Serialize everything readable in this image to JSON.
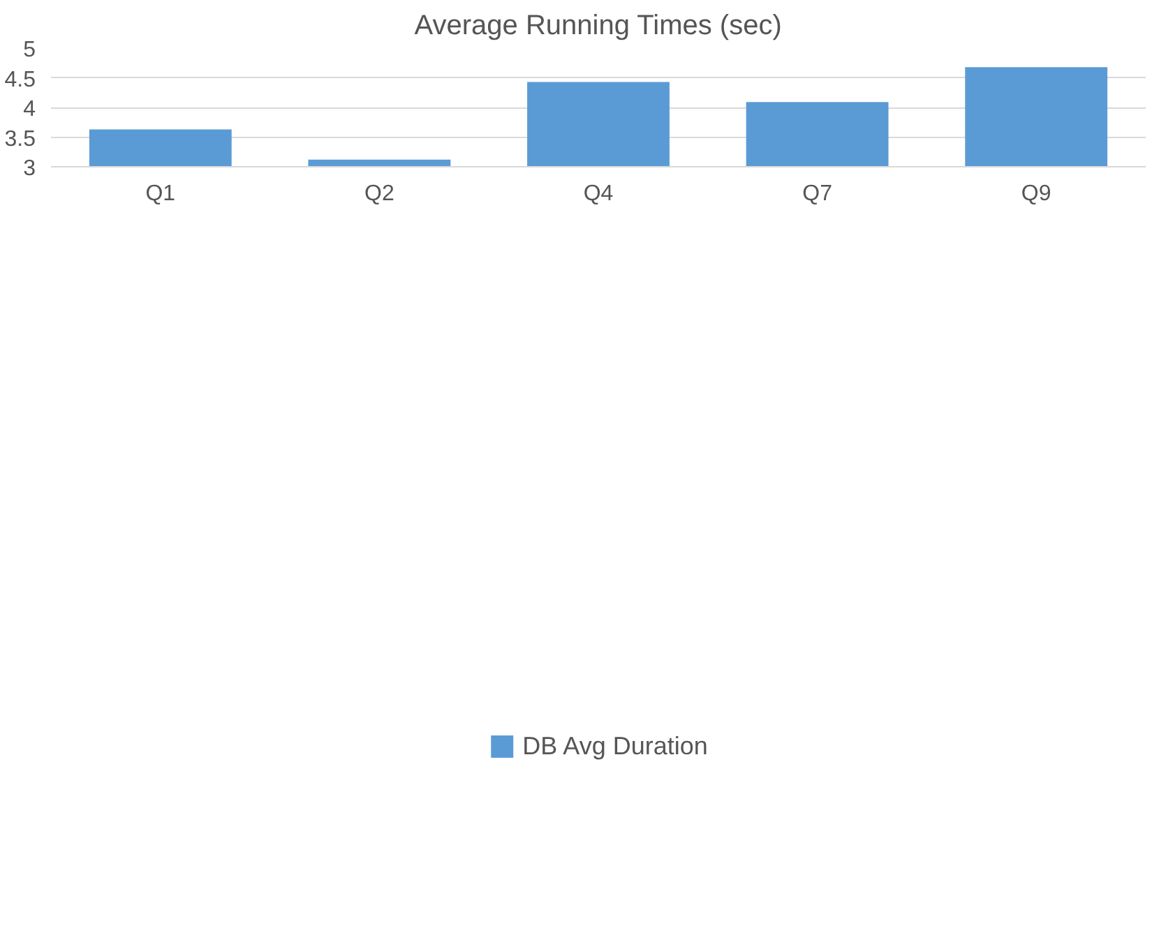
{
  "chart_data": {
    "type": "bar",
    "title": "Average Running Times (sec)",
    "categories": [
      "Q1",
      "Q2",
      "Q4",
      "Q7",
      "Q9"
    ],
    "series": [
      {
        "name": "DB Avg Duration",
        "color": "#5b9bd5",
        "values": [
          3.63,
          3.12,
          4.43,
          4.09,
          4.68
        ]
      }
    ],
    "ylim": [
      3,
      5
    ],
    "yticks": [
      3,
      3.5,
      4,
      4.5,
      5
    ],
    "grid": "y",
    "legend": "bottom"
  }
}
